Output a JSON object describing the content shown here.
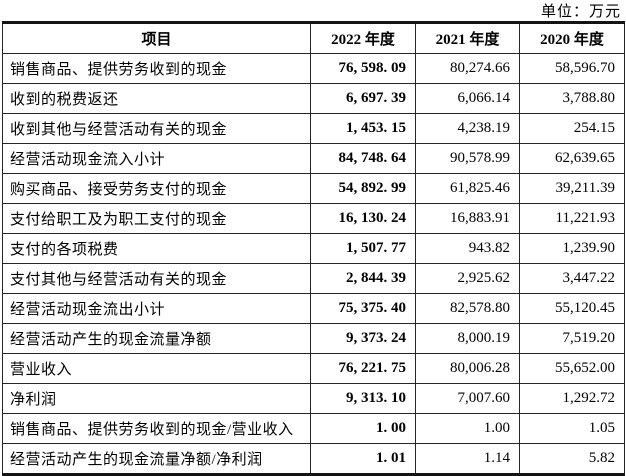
{
  "unit_label": "单位：万元",
  "colors": {
    "background": "#ffffff",
    "text": "#000000",
    "border": "#262626",
    "thick_rule": "#141414"
  },
  "table": {
    "headers": [
      "项目",
      "2022 年度",
      "2021 年度",
      "2020 年度"
    ],
    "rows": [
      {
        "item": "销售商品、提供劳务收到的现金",
        "y2022": "76, 598. 09",
        "y2021": "80,274.66",
        "y2020": "58,596.70"
      },
      {
        "item": "收到的税费返还",
        "y2022": "6, 697. 39",
        "y2021": "6,066.14",
        "y2020": "3,788.80"
      },
      {
        "item": "收到其他与经营活动有关的现金",
        "y2022": "1, 453. 15",
        "y2021": "4,238.19",
        "y2020": "254.15"
      },
      {
        "item": "经营活动现金流入小计",
        "y2022": "84, 748. 64",
        "y2021": "90,578.99",
        "y2020": "62,639.65"
      },
      {
        "item": "购买商品、接受劳务支付的现金",
        "y2022": "54, 892. 99",
        "y2021": "61,825.46",
        "y2020": "39,211.39"
      },
      {
        "item": "支付给职工及为职工支付的现金",
        "y2022": "16, 130. 24",
        "y2021": "16,883.91",
        "y2020": "11,221.93"
      },
      {
        "item": "支付的各项税费",
        "y2022": "1, 507. 77",
        "y2021": "943.82",
        "y2020": "1,239.90"
      },
      {
        "item": "支付其他与经营活动有关的现金",
        "y2022": "2, 844. 39",
        "y2021": "2,925.62",
        "y2020": "3,447.22"
      },
      {
        "item": "经营活动现金流出小计",
        "y2022": "75, 375. 40",
        "y2021": "82,578.80",
        "y2020": "55,120.45"
      },
      {
        "item": "经营活动产生的现金流量净额",
        "y2022": "9, 373. 24",
        "y2021": "8,000.19",
        "y2020": "7,519.20"
      },
      {
        "item": "营业收入",
        "y2022": "76, 221. 75",
        "y2021": "80,006.28",
        "y2020": "55,652.00"
      },
      {
        "item": "净利润",
        "y2022": "9, 313. 10",
        "y2021": "7,007.60",
        "y2020": "1,292.72"
      },
      {
        "item": "销售商品、提供劳务收到的现金/营业收入",
        "y2022": "1. 00",
        "y2021": "1.00",
        "y2020": "1.05"
      },
      {
        "item": "经营活动产生的现金流量净额/净利润",
        "y2022": "1. 01",
        "y2021": "1.14",
        "y2020": "5.82"
      }
    ]
  }
}
